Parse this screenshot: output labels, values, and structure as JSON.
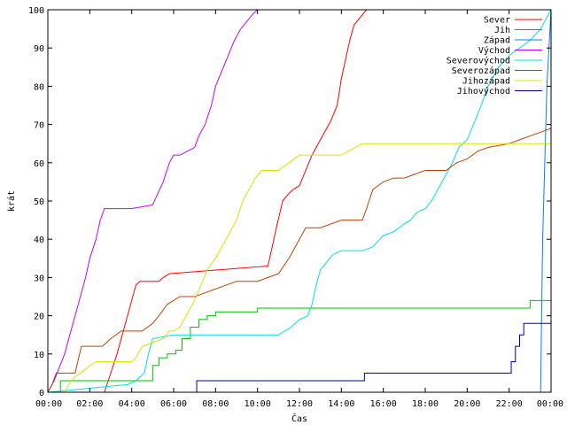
{
  "chart_data": {
    "type": "line",
    "xlabel": "Čas",
    "ylabel": "krát",
    "xlim": [
      0,
      24
    ],
    "ylim": [
      0,
      100
    ],
    "x_ticks": [
      0,
      2,
      4,
      6,
      8,
      10,
      12,
      14,
      16,
      18,
      20,
      22,
      24
    ],
    "x_tick_labels": [
      "00:00",
      "02:00",
      "04:00",
      "06:00",
      "08:00",
      "10:00",
      "12:00",
      "14:00",
      "16:00",
      "18:00",
      "20:00",
      "22:00",
      "00:00"
    ],
    "y_ticks": [
      0,
      10,
      20,
      30,
      40,
      50,
      60,
      70,
      80,
      90,
      100
    ],
    "y_tick_labels": [
      "0",
      "10",
      "20",
      "30",
      "40",
      "50",
      "60",
      "70",
      "80",
      "90",
      "100"
    ],
    "grid": false,
    "legend_position": "top-right",
    "series": [
      {
        "name": "Sever",
        "color": "#ff0000",
        "x": [
          0,
          2.7,
          3.0,
          3.3,
          3.6,
          3.9,
          4.2,
          4.4,
          4.5,
          5.3,
          5.5,
          5.8,
          10.5,
          10.9,
          11.2,
          11.5,
          11.7,
          12.0,
          12.3,
          12.6,
          12.8,
          13.0,
          13.5,
          13.8,
          14.0,
          14.2,
          14.4,
          14.6,
          14.9,
          15.2
        ],
        "y": [
          0,
          0,
          5,
          10,
          16,
          22,
          28,
          29,
          29,
          29,
          30,
          31,
          33,
          43,
          50,
          52,
          53,
          54,
          58,
          62,
          64,
          66,
          71,
          75,
          82,
          87,
          92,
          96,
          98,
          100
        ]
      },
      {
        "name": "Jih",
        "color": "#00c000",
        "x": [
          0,
          0.3,
          0.6,
          4.8,
          5.0,
          5.3,
          5.7,
          6.1,
          6.4,
          6.8,
          7.2,
          7.6,
          8.0,
          9.0,
          10.0,
          12.0,
          13.0,
          16.0,
          20.0,
          22.0,
          22.8,
          23.0,
          24.0
        ],
        "y": [
          0,
          0,
          3,
          3,
          7,
          9,
          10,
          11,
          14,
          17,
          19,
          20,
          21,
          21,
          22,
          22,
          22,
          22,
          22,
          22,
          22,
          24,
          24
        ],
        "linestyle": "step"
      },
      {
        "name": "Západ",
        "color": "#0080ff",
        "x": [
          0,
          23.5,
          23.6,
          23.8,
          24.0
        ],
        "y": [
          0,
          0,
          40,
          80,
          100
        ]
      },
      {
        "name": "Východ",
        "color": "#c000ff",
        "x": [
          0,
          0.3,
          0.8,
          1.0,
          1.2,
          1.5,
          1.8,
          2.0,
          2.3,
          2.5,
          2.7,
          3.0,
          4.0,
          5.0,
          5.5,
          5.8,
          6.0,
          6.3,
          7.0,
          7.2,
          7.5,
          7.8,
          8.0,
          8.3,
          8.6,
          8.9,
          9.2,
          9.5,
          9.8,
          10.0
        ],
        "y": [
          0,
          3,
          10,
          14,
          18,
          24,
          30,
          35,
          40,
          45,
          48,
          48,
          48,
          49,
          55,
          60,
          62,
          62,
          64,
          67,
          70,
          75,
          80,
          84,
          88,
          92,
          95,
          97,
          99,
          100
        ]
      },
      {
        "name": "Severovýchod",
        "color": "#00e0e0",
        "x": [
          0,
          3.8,
          4.2,
          4.6,
          4.8,
          5.0,
          6.0,
          7.0,
          8.0,
          9.0,
          10.0,
          10.5,
          11.0,
          11.3,
          11.6,
          12.0,
          12.4,
          12.6,
          12.8,
          13.0,
          13.3,
          13.6,
          14.0,
          14.3,
          15.0,
          15.5,
          16.0,
          16.5,
          17.0,
          17.3,
          17.6,
          18.0,
          18.3,
          18.6,
          19.0,
          19.3,
          19.6,
          20.0,
          20.3,
          20.6,
          21.0,
          21.5,
          22.0,
          22.5,
          23.0,
          23.5,
          24.0
        ],
        "y": [
          0,
          2,
          3,
          5,
          10,
          14,
          15,
          15,
          15,
          15,
          15,
          15,
          15,
          16,
          17,
          19,
          20,
          23,
          28,
          32,
          34,
          36,
          37,
          37,
          37,
          38,
          41,
          42,
          44,
          45,
          47,
          48,
          50,
          53,
          57,
          60,
          64,
          66,
          70,
          74,
          80,
          85,
          88,
          90,
          92,
          95,
          100
        ]
      },
      {
        "name": "Severozápad",
        "color": "#c04000",
        "x": [
          0,
          0.2,
          0.4,
          1.3,
          1.6,
          2.6,
          3.0,
          3.5,
          4.5,
          5.0,
          5.3,
          5.7,
          6.0,
          6.3,
          7.0,
          7.5,
          8.0,
          8.5,
          9.0,
          10.0,
          10.5,
          11.0,
          11.5,
          12.0,
          12.3,
          12.6,
          13.0,
          14.0,
          14.5,
          15.0,
          15.2,
          15.5,
          16.0,
          16.5,
          17.0,
          17.5,
          18.0,
          19.0,
          19.5,
          20.0,
          20.5,
          21.0,
          22.0,
          22.5,
          23.0,
          24.0
        ],
        "y": [
          0,
          2,
          5,
          5,
          12,
          12,
          14,
          16,
          16,
          18,
          20,
          23,
          24,
          25,
          25,
          26,
          27,
          28,
          29,
          29,
          30,
          31,
          35,
          40,
          43,
          43,
          43,
          45,
          45,
          45,
          48,
          53,
          55,
          56,
          56,
          57,
          58,
          58,
          60,
          61,
          63,
          64,
          65,
          66,
          67,
          69
        ]
      },
      {
        "name": "Jihozápad",
        "color": "#e0e000",
        "x": [
          0,
          0.8,
          1.0,
          1.3,
          1.8,
          2.0,
          2.3,
          4.0,
          4.2,
          4.5,
          5.5,
          5.8,
          6.0,
          6.3,
          6.6,
          7.0,
          7.3,
          7.6,
          8.0,
          8.5,
          9.0,
          9.3,
          9.6,
          9.9,
          10.2,
          10.5,
          10.8,
          11.0,
          11.5,
          12.0,
          14.0,
          15.0,
          16.0,
          20.0,
          24.0
        ],
        "y": [
          0,
          0,
          2,
          4,
          6,
          7,
          8,
          8,
          9,
          12,
          14,
          16,
          16,
          17,
          20,
          24,
          28,
          32,
          35,
          40,
          45,
          50,
          53,
          56,
          58,
          58,
          58,
          58,
          60,
          62,
          62,
          65,
          65,
          65,
          65
        ]
      },
      {
        "name": "Jihovýchod",
        "color": "#0000a0",
        "x": [
          0,
          7.0,
          7.1,
          11.0,
          14.0,
          15.1,
          18.0,
          22.0,
          22.1,
          22.3,
          22.5,
          22.7,
          23.0,
          24.0
        ],
        "y": [
          0,
          0,
          3,
          3,
          3,
          5,
          5,
          5,
          8,
          12,
          15,
          18,
          18,
          18
        ],
        "linestyle": "step"
      }
    ]
  }
}
